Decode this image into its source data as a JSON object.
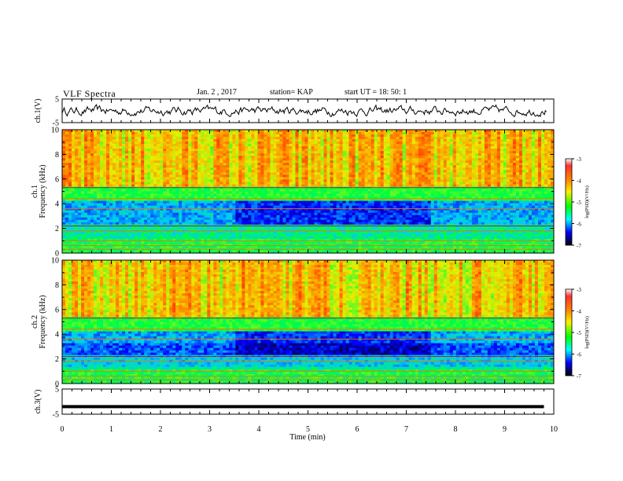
{
  "header": {
    "title": "VLF Spectra",
    "date": "Jan. 2 , 2017",
    "station": "station= KAP",
    "start_ut": "start UT =  18: 50: 1"
  },
  "colorbar": {
    "ticks": [
      "-3",
      "-4",
      "-5",
      "-6",
      "-7"
    ],
    "label": "log(PSD)(V²/Hz)",
    "colors": [
      "#ff0000",
      "#ff9900",
      "#ffff00",
      "#00ff00",
      "#00ffff",
      "#0000ff",
      "#000000"
    ]
  },
  "chart_data": [
    {
      "type": "line",
      "panel": "ch1-waveform",
      "ylabel": "ch.1(V)",
      "y_ticks": [
        "5",
        "-5"
      ],
      "ylim": [
        -5,
        5
      ],
      "xlim": [
        0,
        10
      ],
      "series_color": "#000000",
      "description_values": "noisy waveform fluctuating between about -2 and 2 V"
    },
    {
      "type": "heatmap",
      "panel": "ch1-spectrogram",
      "ylabel": "ch.1\nFrequency (kHz)",
      "ylabel_lines": [
        "ch.1",
        "Frequency (kHz)"
      ],
      "y_ticks": [
        "0",
        "2",
        "4",
        "6",
        "8",
        "10"
      ],
      "ylim": [
        0,
        10
      ],
      "xlim": [
        0,
        10
      ],
      "clim": [
        -7,
        -3
      ]
    },
    {
      "type": "heatmap",
      "panel": "ch2-spectrogram",
      "ylabel_lines": [
        "ch.2",
        "Frequency (kHz)"
      ],
      "y_ticks": [
        "0",
        "2",
        "4",
        "6",
        "8",
        "10"
      ],
      "ylim": [
        0,
        10
      ],
      "xlim": [
        0,
        10
      ],
      "clim": [
        -7,
        -3
      ]
    },
    {
      "type": "line",
      "panel": "ch3-waveform",
      "ylabel": "ch.3(V)",
      "y_ticks": [
        "5",
        "-5"
      ],
      "ylim": [
        -5,
        5
      ],
      "xlim": [
        0,
        10
      ],
      "x": [
        0,
        9.8
      ],
      "y": [
        -2,
        -2
      ],
      "xlabel": "Time (min)",
      "x_ticks": [
        "0",
        "1",
        "2",
        "3",
        "4",
        "5",
        "6",
        "7",
        "8",
        "9",
        "10"
      ]
    }
  ]
}
